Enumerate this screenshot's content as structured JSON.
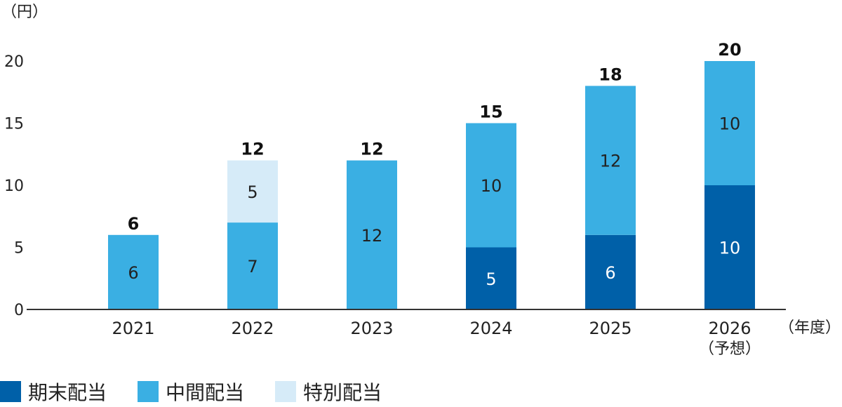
{
  "chart_data": {
    "type": "bar",
    "stacked": true,
    "y_unit_label": "（円）",
    "x_unit_label": "（年度）",
    "categories": [
      "2021",
      "2022",
      "2023",
      "2024",
      "2025",
      "2026"
    ],
    "category_sublabels": [
      "",
      "",
      "",
      "",
      "",
      "（予想）"
    ],
    "ylim": [
      0,
      20
    ],
    "yticks": [
      0,
      5,
      10,
      15,
      20
    ],
    "series": [
      {
        "name": "期末配当",
        "color": "#0060a8",
        "label_color": "#ffffff",
        "values": [
          0,
          0,
          0,
          5,
          6,
          10
        ]
      },
      {
        "name": "中間配当",
        "color": "#3aafe3",
        "label_color": "#222222",
        "values": [
          6,
          7,
          12,
          10,
          12,
          10
        ]
      },
      {
        "name": "特別配当",
        "color": "#d6ebf8",
        "label_color": "#222222",
        "values": [
          0,
          5,
          0,
          0,
          0,
          0
        ]
      }
    ],
    "totals": [
      6,
      12,
      12,
      15,
      18,
      20
    ],
    "legend_position": "bottom-left",
    "grid": false
  }
}
